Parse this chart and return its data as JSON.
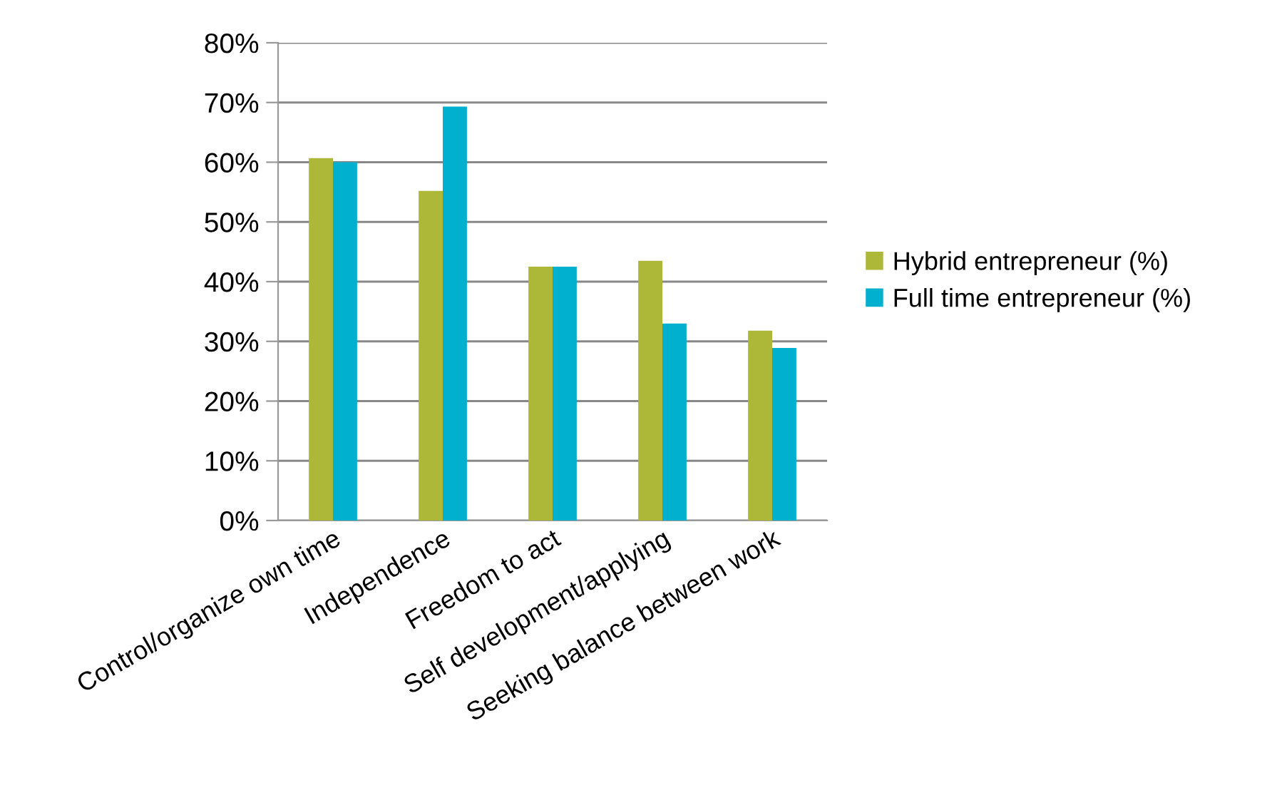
{
  "chart_data": {
    "type": "bar",
    "categories": [
      "Control/organize own time",
      "Independence",
      "Freedom to act",
      "Self development/applying",
      "Seeking balance between work"
    ],
    "series": [
      {
        "name": "Hybrid entrepreneur (%)",
        "color": "#adb838",
        "values": [
          60.7,
          55.2,
          42.5,
          43.5,
          31.8
        ]
      },
      {
        "name": "Full time entrepreneur (%)",
        "color": "#00b0ce",
        "values": [
          60,
          69.3,
          42.5,
          33,
          28.9
        ]
      }
    ],
    "ylim": [
      0,
      80
    ],
    "yticks": [
      {
        "value": 0,
        "label": "0%"
      },
      {
        "value": 10,
        "label": "10%"
      },
      {
        "value": 20,
        "label": "20%"
      },
      {
        "value": 30,
        "label": "30%"
      },
      {
        "value": 40,
        "label": "40%"
      },
      {
        "value": 50,
        "label": "50%"
      },
      {
        "value": 60,
        "label": "60%"
      },
      {
        "value": 70,
        "label": "70%"
      },
      {
        "value": 80,
        "label": "80%"
      }
    ],
    "grid": "y",
    "legend": "right"
  }
}
